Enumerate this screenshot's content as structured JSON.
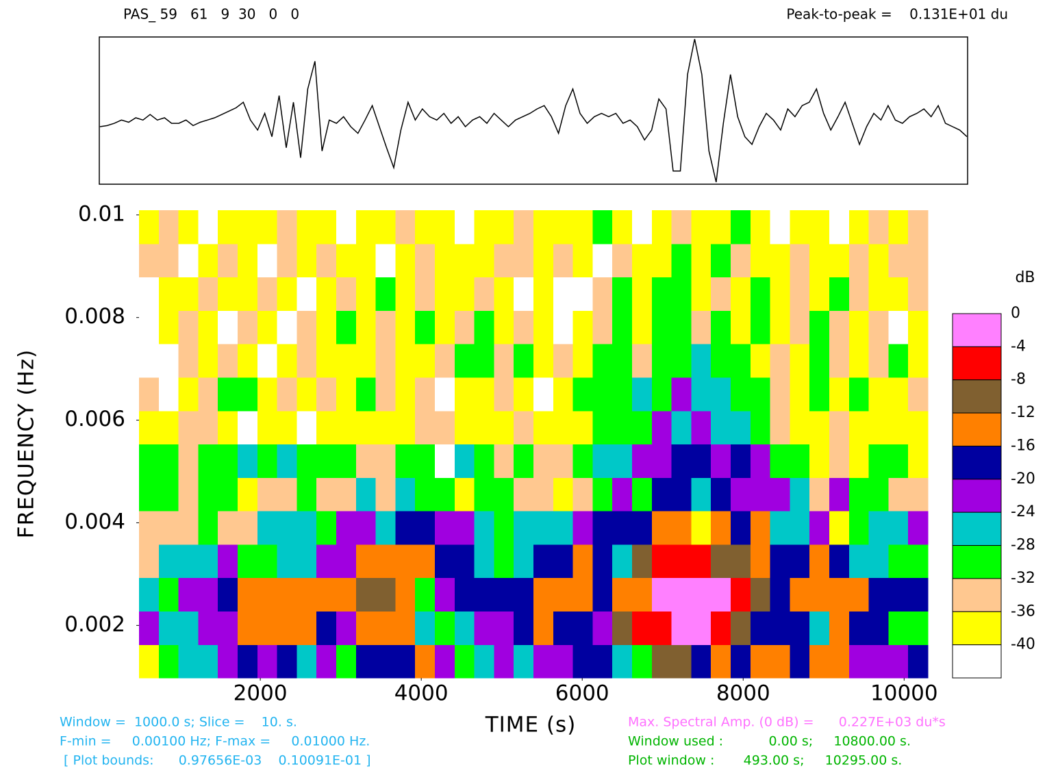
{
  "chart_data": {
    "type": "spectrogram",
    "station_header": "PAS_ 59   61   9  30   0   0",
    "peak_to_peak": "Peak-to-peak =    0.131E+01 du",
    "x_label": "TIME (s)",
    "y_label": "FREQUENCY (Hz)",
    "xlim": [
      493,
      10295
    ],
    "ylim": [
      0.00097656,
      0.010091
    ],
    "xticks": [
      2000,
      4000,
      6000,
      8000,
      10000
    ],
    "yticks": [
      0.002,
      0.004,
      0.006,
      0.008,
      0.01
    ],
    "colorbar": {
      "label": "dB",
      "ticks": [
        0,
        -4,
        -8,
        -12,
        -16,
        -20,
        -24,
        -28,
        -32,
        -36,
        -40
      ],
      "colors": [
        "#ff80ff",
        "#ff0000",
        "#806030",
        "#ff8000",
        "#0000a0",
        "#a000e0",
        "#00c8c8",
        "#00ff00",
        "#ffc890",
        "#ffff00",
        "#ffffff"
      ]
    },
    "info_left": [
      "Window =  1000.0 s; Slice =    10. s.",
      "F-min =     0.00100 Hz; F-max =     0.01000 Hz.",
      " [ Plot bounds:      0.97656E-03    0.10091E-01 ]"
    ],
    "info_right_title": "Max. Spectral Amp. (0 dB) =      0.227E+03 du*s",
    "info_right": [
      "Window used :           0.00 s;     10800.00 s.",
      "Plot window :       493.00 s;     10295.00 s."
    ],
    "trace": {
      "color": "#000000",
      "values": [
        0,
        0.01,
        0.03,
        0.06,
        0.04,
        0.08,
        0.06,
        0.11,
        0.06,
        0.08,
        0.03,
        0.03,
        0.06,
        0.01,
        0.04,
        0.06,
        0.08,
        0.11,
        0.14,
        0.17,
        0.22,
        0.06,
        -0.03,
        0.12,
        -0.09,
        0.28,
        -0.19,
        0.22,
        -0.28,
        0.34,
        0.59,
        -0.22,
        0.06,
        0.03,
        0.09,
        0,
        -0.06,
        0.06,
        0.19,
        0,
        -0.19,
        -0.37,
        -0.03,
        0.22,
        0.06,
        0.16,
        0.09,
        0.06,
        0.12,
        0.03,
        0.09,
        0,
        0.06,
        0.09,
        0.03,
        0.12,
        0.06,
        0,
        0.06,
        0.09,
        0.12,
        0.16,
        0.19,
        0.09,
        -0.06,
        0.19,
        0.34,
        0.12,
        0.03,
        0.09,
        0.12,
        0.09,
        0.12,
        0.03,
        0.06,
        0,
        -0.12,
        -0.03,
        0.25,
        0.16,
        -0.4,
        -0.4,
        0.47,
        0.79,
        0.47,
        -0.22,
        -0.5,
        0.03,
        0.47,
        0.09,
        -0.09,
        -0.16,
        0,
        0.12,
        0.06,
        -0.03,
        0.16,
        0.09,
        0.19,
        0.22,
        0.34,
        0.12,
        -0.03,
        0.09,
        0.22,
        0.03,
        -0.16,
        0,
        0.12,
        0.06,
        0.19,
        0.06,
        0.03,
        0.09,
        0.12,
        0.16,
        0.09,
        0.19,
        0.03,
        0,
        -0.03,
        -0.09
      ]
    },
    "z": [
      [
        -38,
        -30,
        -26,
        -26,
        -22,
        -18,
        -22,
        -18,
        -26,
        -22,
        -30,
        -18,
        -18,
        -18,
        -14,
        -22,
        -30,
        -26,
        -22,
        -26,
        -22,
        -22,
        -18,
        -18,
        -26,
        -30,
        -10,
        -10,
        -18,
        -14,
        -18,
        -14,
        -14,
        -18,
        -14,
        -14,
        -22,
        -22,
        -22,
        -18
      ],
      [
        -22,
        -26,
        -26,
        -22,
        -22,
        -14,
        -14,
        -14,
        -14,
        -18,
        -22,
        -14,
        -14,
        -14,
        -26,
        -30,
        -26,
        -22,
        -22,
        -18,
        -14,
        -18,
        -18,
        -22,
        -10,
        -6,
        -6,
        -2,
        -2,
        -6,
        -10,
        -18,
        -18,
        -18,
        -26,
        -14,
        -18,
        -18,
        -30,
        -30
      ],
      [
        -26,
        -30,
        -22,
        -22,
        -18,
        -14,
        -14,
        -14,
        -14,
        -14,
        -14,
        -10,
        -10,
        -14,
        -30,
        -22,
        -18,
        -18,
        -18,
        -18,
        -14,
        -14,
        -14,
        -18,
        -14,
        -14,
        -2,
        -2,
        -2,
        -2,
        -6,
        -10,
        -18,
        -14,
        -14,
        -14,
        -14,
        -18,
        -18,
        -18
      ],
      [
        -34,
        -26,
        -26,
        -26,
        -22,
        -30,
        -30,
        -26,
        -26,
        -22,
        -22,
        -14,
        -14,
        -14,
        -14,
        -18,
        -18,
        -26,
        -30,
        -26,
        -18,
        -18,
        -14,
        -18,
        -26,
        -10,
        -6,
        -6,
        -6,
        -10,
        -10,
        -14,
        -18,
        -18,
        -14,
        -18,
        -26,
        -26,
        -30,
        -30
      ],
      [
        -34,
        -34,
        -34,
        -30,
        -34,
        -34,
        -26,
        -26,
        -26,
        -30,
        -22,
        -22,
        -26,
        -18,
        -18,
        -22,
        -22,
        -26,
        -30,
        -26,
        -26,
        -26,
        -22,
        -18,
        -18,
        -18,
        -14,
        -14,
        -38,
        -14,
        -18,
        -14,
        -26,
        -26,
        -22,
        -38,
        -30,
        -26,
        -26,
        -22
      ],
      [
        -30,
        -30,
        -34,
        -30,
        -30,
        -38,
        -34,
        -34,
        -30,
        -34,
        -34,
        -26,
        -34,
        -26,
        -30,
        -30,
        -38,
        -30,
        -30,
        -34,
        -34,
        -38,
        -34,
        -30,
        -22,
        -30,
        -18,
        -18,
        -26,
        -18,
        -22,
        -22,
        -22,
        -26,
        -34,
        -22,
        -30,
        -30,
        -34,
        -34
      ],
      [
        -30,
        -30,
        -34,
        -30,
        -30,
        -26,
        -30,
        -26,
        -30,
        -30,
        -30,
        -34,
        -34,
        -30,
        -30,
        -42,
        -26,
        -30,
        -34,
        -30,
        -34,
        -34,
        -30,
        -26,
        -26,
        -22,
        -22,
        -18,
        -18,
        -22,
        -18,
        -22,
        -30,
        -30,
        -38,
        -34,
        -38,
        -30,
        -30,
        -38
      ],
      [
        -38,
        -38,
        -34,
        -34,
        -38,
        -42,
        -38,
        -38,
        -42,
        -38,
        -38,
        -38,
        -38,
        -38,
        -34,
        -34,
        -38,
        -38,
        -38,
        -34,
        -38,
        -38,
        -38,
        -30,
        -30,
        -30,
        -22,
        -26,
        -22,
        -26,
        -26,
        -30,
        -34,
        -38,
        -38,
        -34,
        -38,
        -38,
        -38,
        -38
      ],
      [
        -34,
        -42,
        -38,
        -34,
        -30,
        -30,
        -38,
        -34,
        -38,
        -34,
        -38,
        -30,
        -34,
        -38,
        -34,
        -42,
        -38,
        -38,
        -34,
        -38,
        -42,
        -38,
        -30,
        -30,
        -30,
        -26,
        -30,
        -22,
        -26,
        -26,
        -30,
        -30,
        -34,
        -38,
        -30,
        -38,
        -30,
        -38,
        -38,
        -34
      ],
      [
        -42,
        -42,
        -34,
        -38,
        -34,
        -38,
        -42,
        -38,
        -34,
        -38,
        -38,
        -38,
        -34,
        -38,
        -38,
        -34,
        -30,
        -30,
        -34,
        -30,
        -38,
        -34,
        -38,
        -30,
        -30,
        -34,
        -30,
        -30,
        -26,
        -30,
        -30,
        -38,
        -34,
        -38,
        -30,
        -34,
        -38,
        -34,
        -30,
        -38
      ],
      [
        -42,
        -38,
        -34,
        -38,
        -42,
        -34,
        -38,
        -42,
        -34,
        -38,
        -30,
        -38,
        -34,
        -38,
        -30,
        -38,
        -34,
        -30,
        -38,
        -34,
        -38,
        -42,
        -38,
        -34,
        -30,
        -38,
        -30,
        -30,
        -34,
        -30,
        -38,
        -30,
        -38,
        -34,
        -30,
        -34,
        -38,
        -34,
        -42,
        -38
      ],
      [
        -42,
        -38,
        -38,
        -34,
        -38,
        -38,
        -34,
        -38,
        -42,
        -38,
        -34,
        -38,
        -30,
        -38,
        -34,
        -38,
        -38,
        -34,
        -38,
        -42,
        -38,
        -42,
        -42,
        -34,
        -30,
        -38,
        -30,
        -30,
        -38,
        -34,
        -38,
        -30,
        -38,
        -34,
        -38,
        -30,
        -34,
        -38,
        -38,
        -34
      ],
      [
        -34,
        -34,
        -42,
        -38,
        -34,
        -38,
        -42,
        -34,
        -38,
        -34,
        -38,
        -38,
        -42,
        -38,
        -34,
        -38,
        -38,
        -38,
        -34,
        -34,
        -38,
        -34,
        -38,
        -42,
        -34,
        -38,
        -38,
        -30,
        -38,
        -30,
        -34,
        -38,
        -38,
        -34,
        -38,
        -38,
        -34,
        -38,
        -34,
        -34
      ],
      [
        -38,
        -34,
        -38,
        -42,
        -38,
        -38,
        -38,
        -34,
        -38,
        -38,
        -42,
        -38,
        -38,
        -34,
        -38,
        -38,
        -42,
        -38,
        -38,
        -34,
        -38,
        -38,
        -38,
        -30,
        -38,
        -42,
        -38,
        -34,
        -38,
        -38,
        -30,
        -38,
        -42,
        -38,
        -38,
        -42,
        -38,
        -34,
        -38,
        -34
      ]
    ]
  }
}
